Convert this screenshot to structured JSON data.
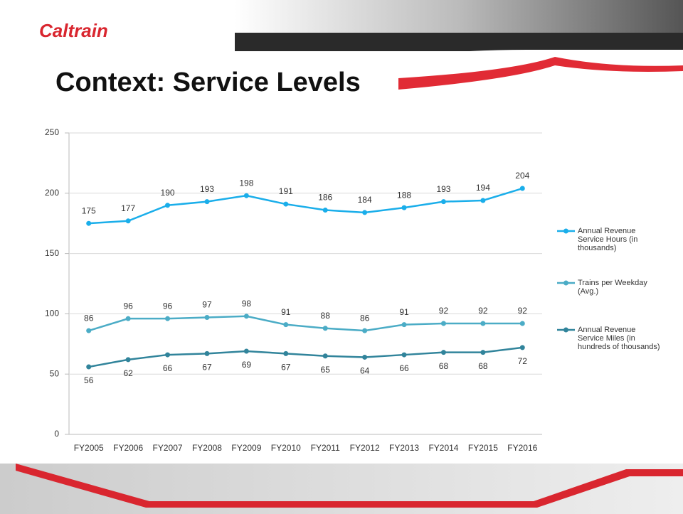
{
  "slide": {
    "logo": "Caltrain",
    "title": "Context: Service Levels"
  },
  "chart_data": {
    "type": "line",
    "categories": [
      "FY2005",
      "FY2006",
      "FY2007",
      "FY2008",
      "FY2009",
      "FY2010",
      "FY2011",
      "FY2012",
      "FY2013",
      "FY2014",
      "FY2015",
      "FY2016"
    ],
    "series": [
      {
        "name": "Annual Revenue Service Hours (in thousands)",
        "color": "#1aaeea",
        "values": [
          175,
          177,
          190,
          193,
          198,
          191,
          186,
          184,
          188,
          193,
          194,
          204
        ]
      },
      {
        "name": "Trains per Weekday (Avg.)",
        "color": "#4bacc6",
        "values": [
          86,
          96,
          96,
          97,
          98,
          91,
          88,
          86,
          91,
          92,
          92,
          92
        ]
      },
      {
        "name": "Annual Revenue Service Miles (in hundreds of thousands)",
        "color": "#31849b",
        "values": [
          56,
          62,
          66,
          67,
          69,
          67,
          65,
          64,
          66,
          68,
          68,
          72
        ]
      }
    ],
    "ylim": [
      0,
      250
    ],
    "yticks": [
      0,
      50,
      100,
      150,
      200,
      250
    ],
    "grid": true,
    "legend": "right"
  }
}
